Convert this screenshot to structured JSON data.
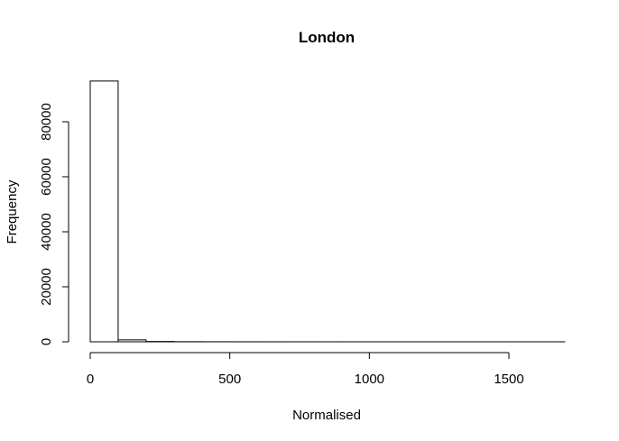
{
  "chart_data": {
    "type": "bar",
    "title": "London",
    "xlabel": "Normalised",
    "ylabel": "Frequency",
    "xlim": [
      0,
      1700
    ],
    "ylim": [
      0,
      95000
    ],
    "x_ticks": [
      0,
      500,
      1000,
      1500
    ],
    "y_ticks": [
      0,
      20000,
      40000,
      60000,
      80000
    ],
    "bin_width": 100,
    "bins": [
      {
        "start": 0,
        "end": 100,
        "count": 94800
      },
      {
        "start": 100,
        "end": 200,
        "count": 700
      },
      {
        "start": 200,
        "end": 300,
        "count": 120
      },
      {
        "start": 300,
        "end": 400,
        "count": 40
      },
      {
        "start": 400,
        "end": 500,
        "count": 20
      },
      {
        "start": 500,
        "end": 600,
        "count": 10
      },
      {
        "start": 600,
        "end": 700,
        "count": 5
      },
      {
        "start": 700,
        "end": 800,
        "count": 3
      },
      {
        "start": 800,
        "end": 900,
        "count": 2
      },
      {
        "start": 900,
        "end": 1000,
        "count": 2
      },
      {
        "start": 1000,
        "end": 1100,
        "count": 1
      },
      {
        "start": 1100,
        "end": 1200,
        "count": 1
      },
      {
        "start": 1200,
        "end": 1300,
        "count": 1
      },
      {
        "start": 1300,
        "end": 1400,
        "count": 1
      },
      {
        "start": 1400,
        "end": 1500,
        "count": 1
      },
      {
        "start": 1500,
        "end": 1600,
        "count": 1
      },
      {
        "start": 1600,
        "end": 1700,
        "count": 1
      }
    ],
    "grid": false,
    "legend": "none"
  }
}
